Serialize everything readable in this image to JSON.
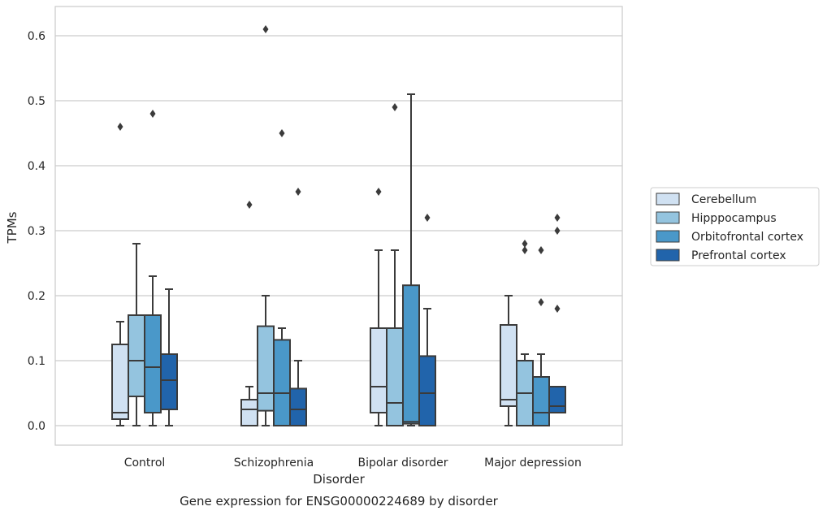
{
  "chart_data": {
    "type": "box",
    "title": "",
    "caption": "Gene expression for ENSG00000224689 by disorder",
    "xlabel": "Disorder",
    "ylabel": "TPMs",
    "ylim": [
      -0.03,
      0.645
    ],
    "yticks": [
      0.0,
      0.1,
      0.2,
      0.3,
      0.4,
      0.5,
      0.6
    ],
    "ytick_labels": [
      "0.0",
      "0.1",
      "0.2",
      "0.3",
      "0.4",
      "0.5",
      "0.6"
    ],
    "grid": "horizontal",
    "legend_position": "right",
    "categories": [
      "Control",
      "Schizophrenia",
      "Bipolar disorder",
      "Major depression"
    ],
    "series": [
      {
        "name": "Cerebellum",
        "color": "#d0e1f2",
        "boxes": [
          {
            "whisker_low": 0.0,
            "q1": 0.01,
            "median": 0.02,
            "q3": 0.125,
            "whisker_high": 0.16,
            "outliers": [
              0.46
            ]
          },
          {
            "whisker_low": 0.0,
            "q1": 0.0,
            "median": 0.025,
            "q3": 0.04,
            "whisker_high": 0.06,
            "outliers": [
              0.34
            ]
          },
          {
            "whisker_low": 0.0,
            "q1": 0.02,
            "median": 0.06,
            "q3": 0.15,
            "whisker_high": 0.27,
            "outliers": [
              0.36
            ]
          },
          {
            "whisker_low": 0.0,
            "q1": 0.03,
            "median": 0.04,
            "q3": 0.155,
            "whisker_high": 0.2,
            "outliers": []
          }
        ]
      },
      {
        "name": "Hipppocampus",
        "color": "#94c4df",
        "boxes": [
          {
            "whisker_low": 0.0,
            "q1": 0.045,
            "median": 0.1,
            "q3": 0.17,
            "whisker_high": 0.28,
            "outliers": []
          },
          {
            "whisker_low": 0.0,
            "q1": 0.023,
            "median": 0.05,
            "q3": 0.153,
            "whisker_high": 0.2,
            "outliers": [
              0.61
            ]
          },
          {
            "whisker_low": 0.0,
            "q1": 0.0,
            "median": 0.035,
            "q3": 0.15,
            "whisker_high": 0.27,
            "outliers": [
              0.49
            ]
          },
          {
            "whisker_low": 0.0,
            "q1": 0.0,
            "median": 0.05,
            "q3": 0.1,
            "whisker_high": 0.11,
            "outliers": [
              0.28,
              0.27
            ]
          }
        ]
      },
      {
        "name": "Orbitofrontal cortex",
        "color": "#4a98c9",
        "boxes": [
          {
            "whisker_low": 0.0,
            "q1": 0.02,
            "median": 0.09,
            "q3": 0.17,
            "whisker_high": 0.23,
            "outliers": [
              0.48
            ]
          },
          {
            "whisker_low": 0.0,
            "q1": 0.0,
            "median": 0.05,
            "q3": 0.132,
            "whisker_high": 0.15,
            "outliers": [
              0.45
            ]
          },
          {
            "whisker_low": 0.0,
            "q1": 0.003,
            "median": 0.006,
            "q3": 0.216,
            "whisker_high": 0.51,
            "outliers": []
          },
          {
            "whisker_low": 0.0,
            "q1": 0.0,
            "median": 0.02,
            "q3": 0.075,
            "whisker_high": 0.11,
            "outliers": [
              0.27,
              0.19
            ]
          }
        ]
      },
      {
        "name": "Prefrontal cortex",
        "color": "#2164ab",
        "boxes": [
          {
            "whisker_low": 0.0,
            "q1": 0.025,
            "median": 0.07,
            "q3": 0.11,
            "whisker_high": 0.21,
            "outliers": []
          },
          {
            "whisker_low": 0.0,
            "q1": 0.0,
            "median": 0.025,
            "q3": 0.057,
            "whisker_high": 0.1,
            "outliers": [
              0.36
            ]
          },
          {
            "whisker_low": 0.0,
            "q1": 0.0,
            "median": 0.05,
            "q3": 0.107,
            "whisker_high": 0.18,
            "outliers": [
              0.32
            ]
          },
          {
            "whisker_low": 0.02,
            "q1": 0.02,
            "median": 0.03,
            "q3": 0.06,
            "whisker_high": 0.06,
            "outliers": [
              0.32,
              0.3,
              0.18
            ]
          }
        ]
      }
    ]
  },
  "colors": {
    "grid": "#cccccc",
    "axes_frame": "#cccccc",
    "box_edge": "#3b3b3b",
    "text": "#262626"
  }
}
